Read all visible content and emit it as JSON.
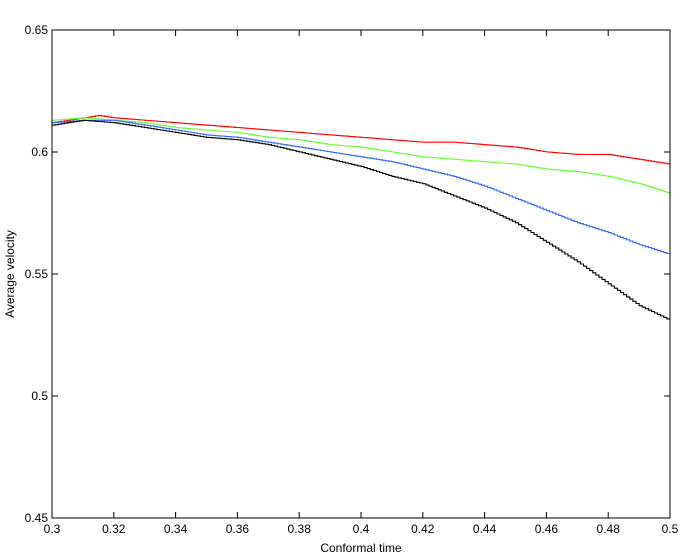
{
  "chart_data": {
    "type": "line",
    "title": "",
    "xlabel": "Conformal time",
    "ylabel": "Average velocity",
    "xlim": [
      0.3,
      0.5
    ],
    "ylim": [
      0.45,
      0.65
    ],
    "xticks": [
      0.3,
      0.32,
      0.34,
      0.36,
      0.38,
      0.4,
      0.42,
      0.44,
      0.46,
      0.48,
      0.5
    ],
    "xtick_labels": [
      "0.3",
      "0.32",
      "0.34",
      "0.36",
      "0.38",
      "0.4",
      "0.42",
      "0.44",
      "0.46",
      "0.48",
      "0.5"
    ],
    "yticks": [
      0.45,
      0.5,
      0.55,
      0.6,
      0.65
    ],
    "ytick_labels": [
      "0.45",
      "0.5",
      "0.55",
      "0.6",
      "0.65"
    ],
    "grid": false,
    "legend": false,
    "series": [
      {
        "color": "#ff0000",
        "x": [
          0.3,
          0.31,
          0.315,
          0.32,
          0.33,
          0.34,
          0.35,
          0.36,
          0.37,
          0.38,
          0.39,
          0.4,
          0.41,
          0.42,
          0.43,
          0.44,
          0.45,
          0.46,
          0.47,
          0.48,
          0.49,
          0.5
        ],
        "y": [
          0.612,
          0.614,
          0.615,
          0.614,
          0.613,
          0.612,
          0.611,
          0.61,
          0.609,
          0.608,
          0.607,
          0.606,
          0.605,
          0.604,
          0.604,
          0.603,
          0.602,
          0.6,
          0.599,
          0.599,
          0.597,
          0.595
        ]
      },
      {
        "color": "#66ff33",
        "x": [
          0.3,
          0.31,
          0.32,
          0.33,
          0.34,
          0.35,
          0.36,
          0.37,
          0.38,
          0.39,
          0.4,
          0.41,
          0.42,
          0.43,
          0.44,
          0.45,
          0.46,
          0.47,
          0.48,
          0.49,
          0.5
        ],
        "y": [
          0.613,
          0.614,
          0.613,
          0.612,
          0.61,
          0.609,
          0.608,
          0.606,
          0.605,
          0.603,
          0.602,
          0.6,
          0.598,
          0.597,
          0.596,
          0.595,
          0.593,
          0.592,
          0.59,
          0.587,
          0.583
        ]
      },
      {
        "color": "#3366ff",
        "x": [
          0.3,
          0.31,
          0.32,
          0.33,
          0.34,
          0.35,
          0.36,
          0.37,
          0.38,
          0.39,
          0.4,
          0.41,
          0.42,
          0.43,
          0.44,
          0.45,
          0.46,
          0.47,
          0.48,
          0.49,
          0.5
        ],
        "y": [
          0.612,
          0.613,
          0.613,
          0.611,
          0.609,
          0.607,
          0.606,
          0.604,
          0.602,
          0.6,
          0.598,
          0.596,
          0.593,
          0.59,
          0.586,
          0.581,
          0.576,
          0.571,
          0.567,
          0.562,
          0.558
        ]
      },
      {
        "color": "#000000",
        "x": [
          0.3,
          0.31,
          0.32,
          0.33,
          0.34,
          0.35,
          0.36,
          0.37,
          0.38,
          0.39,
          0.4,
          0.41,
          0.42,
          0.43,
          0.44,
          0.45,
          0.46,
          0.47,
          0.48,
          0.49,
          0.5
        ],
        "y": [
          0.611,
          0.613,
          0.612,
          0.61,
          0.608,
          0.606,
          0.605,
          0.603,
          0.6,
          0.597,
          0.594,
          0.59,
          0.587,
          0.582,
          0.577,
          0.571,
          0.563,
          0.555,
          0.546,
          0.537,
          0.531
        ]
      }
    ]
  }
}
